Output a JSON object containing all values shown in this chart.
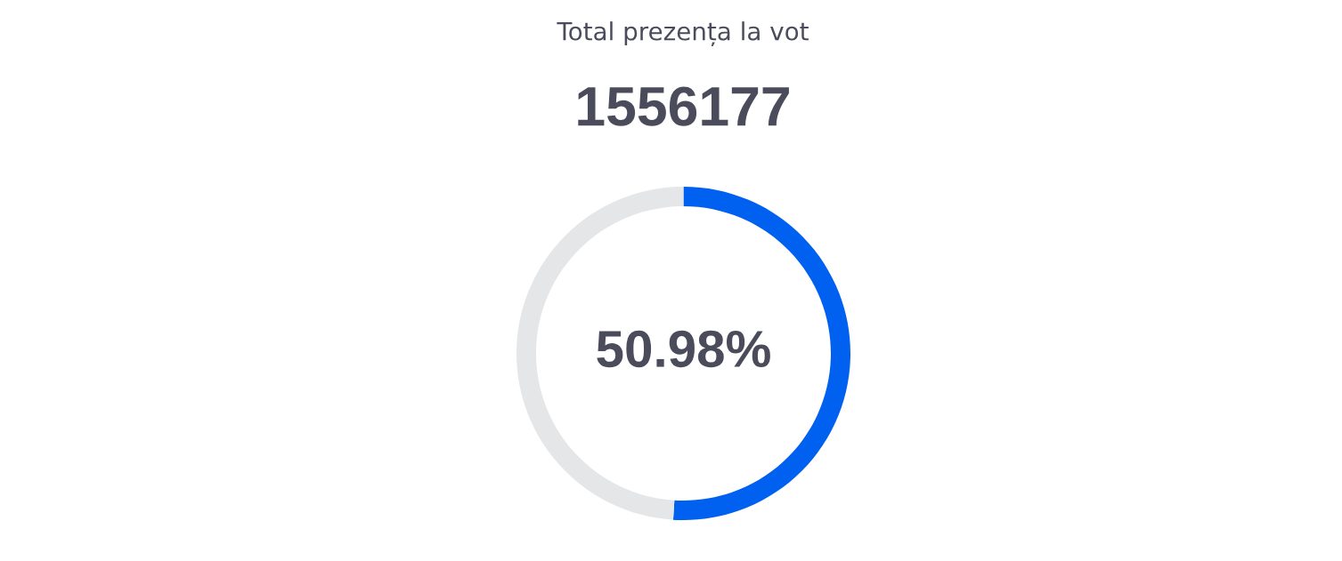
{
  "chart_data": {
    "type": "donut",
    "title": "Total prezența la vot",
    "subtitle": "1556177",
    "categories": [
      null,
      null
    ],
    "values": [
      50.98,
      49.02
    ],
    "colors": [
      "#0061f0",
      "#e5e6e8"
    ],
    "annotations": [
      "50.98%"
    ]
  }
}
